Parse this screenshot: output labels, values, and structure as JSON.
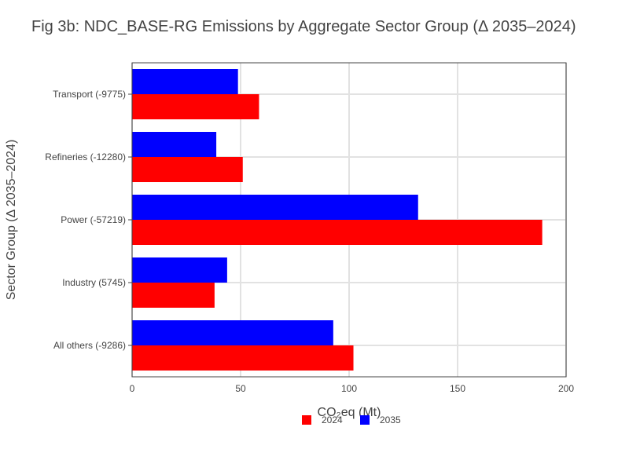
{
  "chart_data": {
    "type": "bar",
    "orientation": "horizontal",
    "title": "Fig 3b: NDC_BASE-RG Emissions by Aggregate Sector Group (Δ 2035–2024)",
    "xlabel": "CO₂eq (Mt)",
    "ylabel": "Sector Group (Δ 2035–2024)",
    "categories": [
      "All others (-9286)",
      "Industry (5745)",
      "Power (-57219)",
      "Refineries (-12280)",
      "Transport (-9775)"
    ],
    "series": [
      {
        "name": "2024",
        "color": "#ff0000",
        "values": [
          102,
          38,
          189,
          51,
          58.5
        ]
      },
      {
        "name": "2035",
        "color": "#0000ff",
        "values": [
          92.7,
          43.8,
          131.8,
          38.8,
          48.8
        ]
      }
    ],
    "xlim": [
      0,
      200
    ],
    "xticks": [
      0,
      50,
      100,
      150,
      200
    ],
    "grid": true,
    "legend_position": "bottom-center"
  }
}
